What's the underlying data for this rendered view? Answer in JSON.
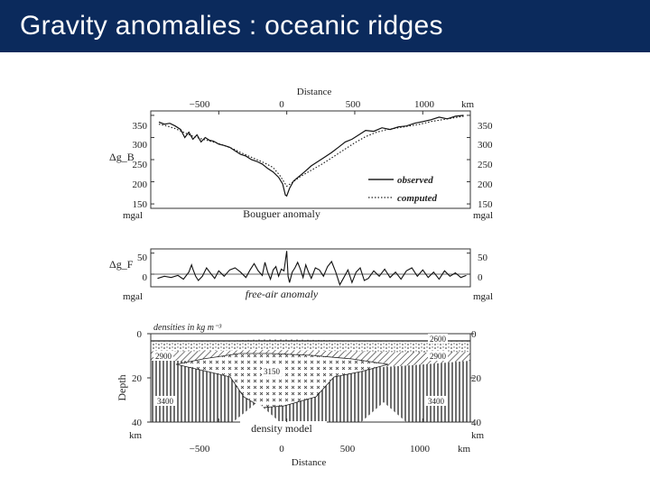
{
  "slide": {
    "title": "Gravity anomalies : oceanic ridges"
  },
  "colors": {
    "title_bar": "#0b2a5c",
    "title_text": "#ffffff"
  },
  "chart_data": [
    {
      "type": "line",
      "title": "Bouguer anomaly",
      "xlabel": "Distance",
      "x_unit": "km",
      "ylabel": "Δg_B",
      "y_unit": "mgal",
      "xlim": [
        -1000,
        1350
      ],
      "ylim": [
        140,
        360
      ],
      "x_ticks": [
        "−500",
        "0",
        "500",
        "1000",
        "km"
      ],
      "y_ticks": [
        "350",
        "300",
        "250",
        "200",
        "150"
      ],
      "legend_position": "inside-right",
      "series": [
        {
          "name": "observed",
          "style": "solid",
          "x": [
            -940,
            -900,
            -860,
            -820,
            -780,
            -750,
            -720,
            -690,
            -660,
            -630,
            -600,
            -570,
            -540,
            -500,
            -460,
            -420,
            -380,
            -340,
            -300,
            -260,
            -220,
            -180,
            -140,
            -100,
            -60,
            -30,
            -10,
            0,
            20,
            50,
            90,
            130,
            180,
            230,
            280,
            330,
            380,
            430,
            480,
            530,
            580,
            640,
            700,
            760,
            820,
            880,
            940,
            1000,
            1060,
            1120,
            1180,
            1240,
            1300
          ],
          "y": [
            335,
            330,
            332,
            326,
            318,
            300,
            312,
            296,
            306,
            290,
            300,
            294,
            292,
            285,
            282,
            278,
            270,
            262,
            258,
            250,
            246,
            240,
            230,
            222,
            210,
            195,
            170,
            168,
            185,
            202,
            212,
            222,
            236,
            246,
            256,
            266,
            278,
            290,
            296,
            306,
            316,
            314,
            322,
            318,
            324,
            326,
            332,
            336,
            340,
            346,
            342,
            348,
            350
          ]
        },
        {
          "name": "computed",
          "style": "dotted",
          "x": [
            -940,
            -880,
            -820,
            -760,
            -700,
            -640,
            -580,
            -520,
            -460,
            -400,
            -340,
            -280,
            -220,
            -160,
            -100,
            -50,
            0,
            40,
            100,
            180,
            260,
            340,
            420,
            500,
            580,
            660,
            740,
            820,
            900,
            980,
            1060,
            1140,
            1220,
            1300
          ],
          "y": [
            330,
            326,
            320,
            312,
            304,
            298,
            293,
            288,
            282,
            275,
            266,
            258,
            250,
            242,
            232,
            214,
            190,
            198,
            212,
            226,
            240,
            256,
            272,
            288,
            302,
            312,
            318,
            322,
            326,
            330,
            336,
            340,
            344,
            348
          ]
        }
      ]
    },
    {
      "type": "line",
      "title": "free-air anomaly",
      "xlabel": "Distance",
      "x_unit": "km",
      "ylabel": "Δg_F",
      "y_unit": "mgal",
      "xlim": [
        -1000,
        1350
      ],
      "ylim": [
        -30,
        60
      ],
      "y_ticks": [
        "50",
        "0"
      ],
      "series": [
        {
          "name": "observed",
          "x": [
            -950,
            -900,
            -850,
            -800,
            -760,
            -720,
            -700,
            -690,
            -670,
            -650,
            -620,
            -590,
            -560,
            -530,
            -500,
            -460,
            -420,
            -380,
            -340,
            -300,
            -270,
            -240,
            -210,
            -180,
            -160,
            -140,
            -120,
            -100,
            -80,
            -60,
            -40,
            -20,
            0,
            10,
            20,
            40,
            60,
            80,
            100,
            120,
            140,
            160,
            180,
            210,
            240,
            270,
            300,
            330,
            360,
            390,
            420,
            450,
            480,
            510,
            540,
            570,
            600,
            640,
            680,
            720,
            760,
            800,
            840,
            880,
            920,
            960,
            1000,
            1040,
            1080,
            1120,
            1160,
            1200,
            1240,
            1280,
            1320
          ],
          "y": [
            -10,
            -5,
            -8,
            -3,
            -12,
            5,
            22,
            12,
            -5,
            -15,
            -5,
            15,
            2,
            -10,
            8,
            -5,
            10,
            15,
            5,
            -8,
            10,
            25,
            8,
            -3,
            28,
            5,
            -12,
            10,
            18,
            -5,
            12,
            8,
            55,
            -5,
            -20,
            5,
            15,
            28,
            12,
            -8,
            22,
            5,
            -10,
            15,
            10,
            -5,
            18,
            30,
            5,
            -25,
            -8,
            10,
            -20,
            5,
            15,
            -15,
            -10,
            8,
            -5,
            12,
            -8,
            5,
            -12,
            8,
            15,
            -5,
            10,
            -8,
            5,
            -12,
            8,
            -5,
            3,
            -8,
            -3
          ]
        }
      ]
    },
    {
      "type": "other",
      "title": "density model",
      "xlabel": "Distance",
      "x_unit": "km",
      "ylabel": "Depth",
      "y_unit": "km",
      "xlim": [
        -1000,
        1350
      ],
      "ylim": [
        0,
        40
      ],
      "y_ticks": [
        "0",
        "20",
        "40"
      ],
      "x_ticks": [
        "−500",
        "0",
        "500",
        "1000",
        "km"
      ],
      "header_label": "densities in kg m⁻³",
      "layers": [
        {
          "name": "water layer",
          "label": ""
        },
        {
          "name": "upper crust",
          "label": "2600"
        },
        {
          "name": "lower crust left",
          "label": "2900"
        },
        {
          "name": "lower crust right",
          "label": "2900"
        },
        {
          "name": "anomalous mantle",
          "label": "3150"
        },
        {
          "name": "mantle left",
          "label": "3400"
        },
        {
          "name": "mantle right",
          "label": "3400"
        }
      ]
    }
  ]
}
